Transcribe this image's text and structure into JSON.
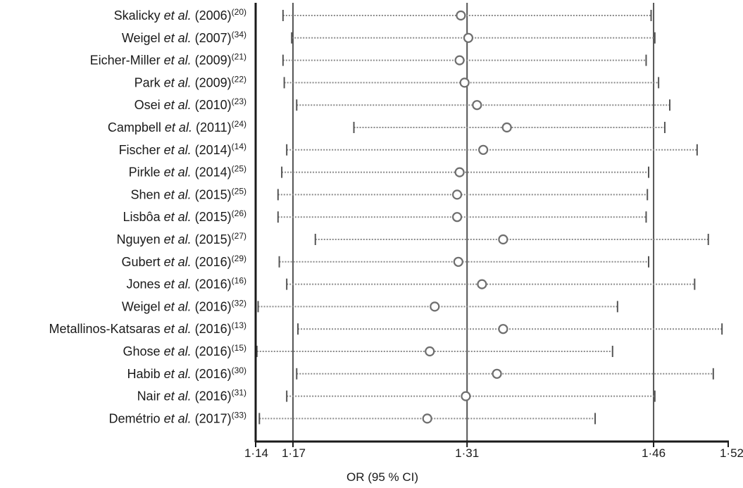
{
  "chart_data": {
    "type": "forest",
    "xlabel": "OR (95 % CI)",
    "xlim": [
      1.14,
      1.52
    ],
    "ticks": [
      {
        "value": 1.14,
        "label": "1·14"
      },
      {
        "value": 1.17,
        "label": "1·17"
      },
      {
        "value": 1.31,
        "label": "1·31"
      },
      {
        "value": 1.46,
        "label": "1·46"
      },
      {
        "value": 1.52,
        "label": "1·52"
      }
    ],
    "reference_lines": [
      1.17,
      1.31,
      1.46
    ],
    "studies": [
      {
        "author": "Skalicky",
        "etal": "et al.",
        "year": "(2006)",
        "ref": "(20)",
        "or": 1.305,
        "lower": 1.162,
        "upper": 1.458
      },
      {
        "author": "Weigel",
        "etal": "et al.",
        "year": "(2007)",
        "ref": "(34)",
        "or": 1.311,
        "lower": 1.169,
        "upper": 1.461
      },
      {
        "author": "Eicher-Miller",
        "etal": "et al.",
        "year": "(2009)",
        "ref": "(21)",
        "or": 1.304,
        "lower": 1.162,
        "upper": 1.454
      },
      {
        "author": "Park",
        "etal": "et al.",
        "year": "(2009)",
        "ref": "(22)",
        "or": 1.308,
        "lower": 1.163,
        "upper": 1.464
      },
      {
        "author": "Osei",
        "etal": "et al.",
        "year": "(2010)",
        "ref": "(23)",
        "or": 1.318,
        "lower": 1.173,
        "upper": 1.473
      },
      {
        "author": "Campbell",
        "etal": "et al.",
        "year": "(2011)",
        "ref": "(24)",
        "or": 1.342,
        "lower": 1.219,
        "upper": 1.469
      },
      {
        "author": "Fischer",
        "etal": "et al.",
        "year": "(2014)",
        "ref": "(14)",
        "or": 1.323,
        "lower": 1.165,
        "upper": 1.495
      },
      {
        "author": "Pirkle",
        "etal": "et al.",
        "year": "(2014)",
        "ref": "(25)",
        "or": 1.304,
        "lower": 1.161,
        "upper": 1.456
      },
      {
        "author": "Shen",
        "etal": "et al.",
        "year": "(2015)",
        "ref": "(25)",
        "or": 1.302,
        "lower": 1.158,
        "upper": 1.455
      },
      {
        "author": "Lisbôa",
        "etal": "et al.",
        "year": "(2015)",
        "ref": "(26)",
        "or": 1.302,
        "lower": 1.158,
        "upper": 1.454
      },
      {
        "author": "Nguyen",
        "etal": "et al.",
        "year": "(2015)",
        "ref": "(27)",
        "or": 1.339,
        "lower": 1.188,
        "upper": 1.504
      },
      {
        "author": "Gubert",
        "etal": "et al.",
        "year": "(2016)",
        "ref": "(29)",
        "or": 1.303,
        "lower": 1.159,
        "upper": 1.456
      },
      {
        "author": "Jones",
        "etal": "et al.",
        "year": "(2016)",
        "ref": "(16)",
        "or": 1.322,
        "lower": 1.165,
        "upper": 1.493
      },
      {
        "author": "Weigel",
        "etal": "et al.",
        "year": "(2016)",
        "ref": "(32)",
        "or": 1.284,
        "lower": 1.142,
        "upper": 1.431
      },
      {
        "author": "Metallinos-Katsaras",
        "etal": "et al.",
        "year": "(2016)",
        "ref": "(13)",
        "or": 1.339,
        "lower": 1.174,
        "upper": 1.515
      },
      {
        "author": "Ghose",
        "etal": "et al.",
        "year": "(2016)",
        "ref": "(15)",
        "or": 1.28,
        "lower": 1.141,
        "upper": 1.427
      },
      {
        "author": "Habib",
        "etal": "et al.",
        "year": "(2016)",
        "ref": "(30)",
        "or": 1.334,
        "lower": 1.173,
        "upper": 1.508
      },
      {
        "author": "Nair",
        "etal": "et al.",
        "year": "(2016)",
        "ref": "(31)",
        "or": 1.309,
        "lower": 1.165,
        "upper": 1.461
      },
      {
        "author": "Demétrio",
        "etal": "et al.",
        "year": "(2017)",
        "ref": "(33)",
        "or": 1.278,
        "lower": 1.143,
        "upper": 1.413
      }
    ]
  }
}
